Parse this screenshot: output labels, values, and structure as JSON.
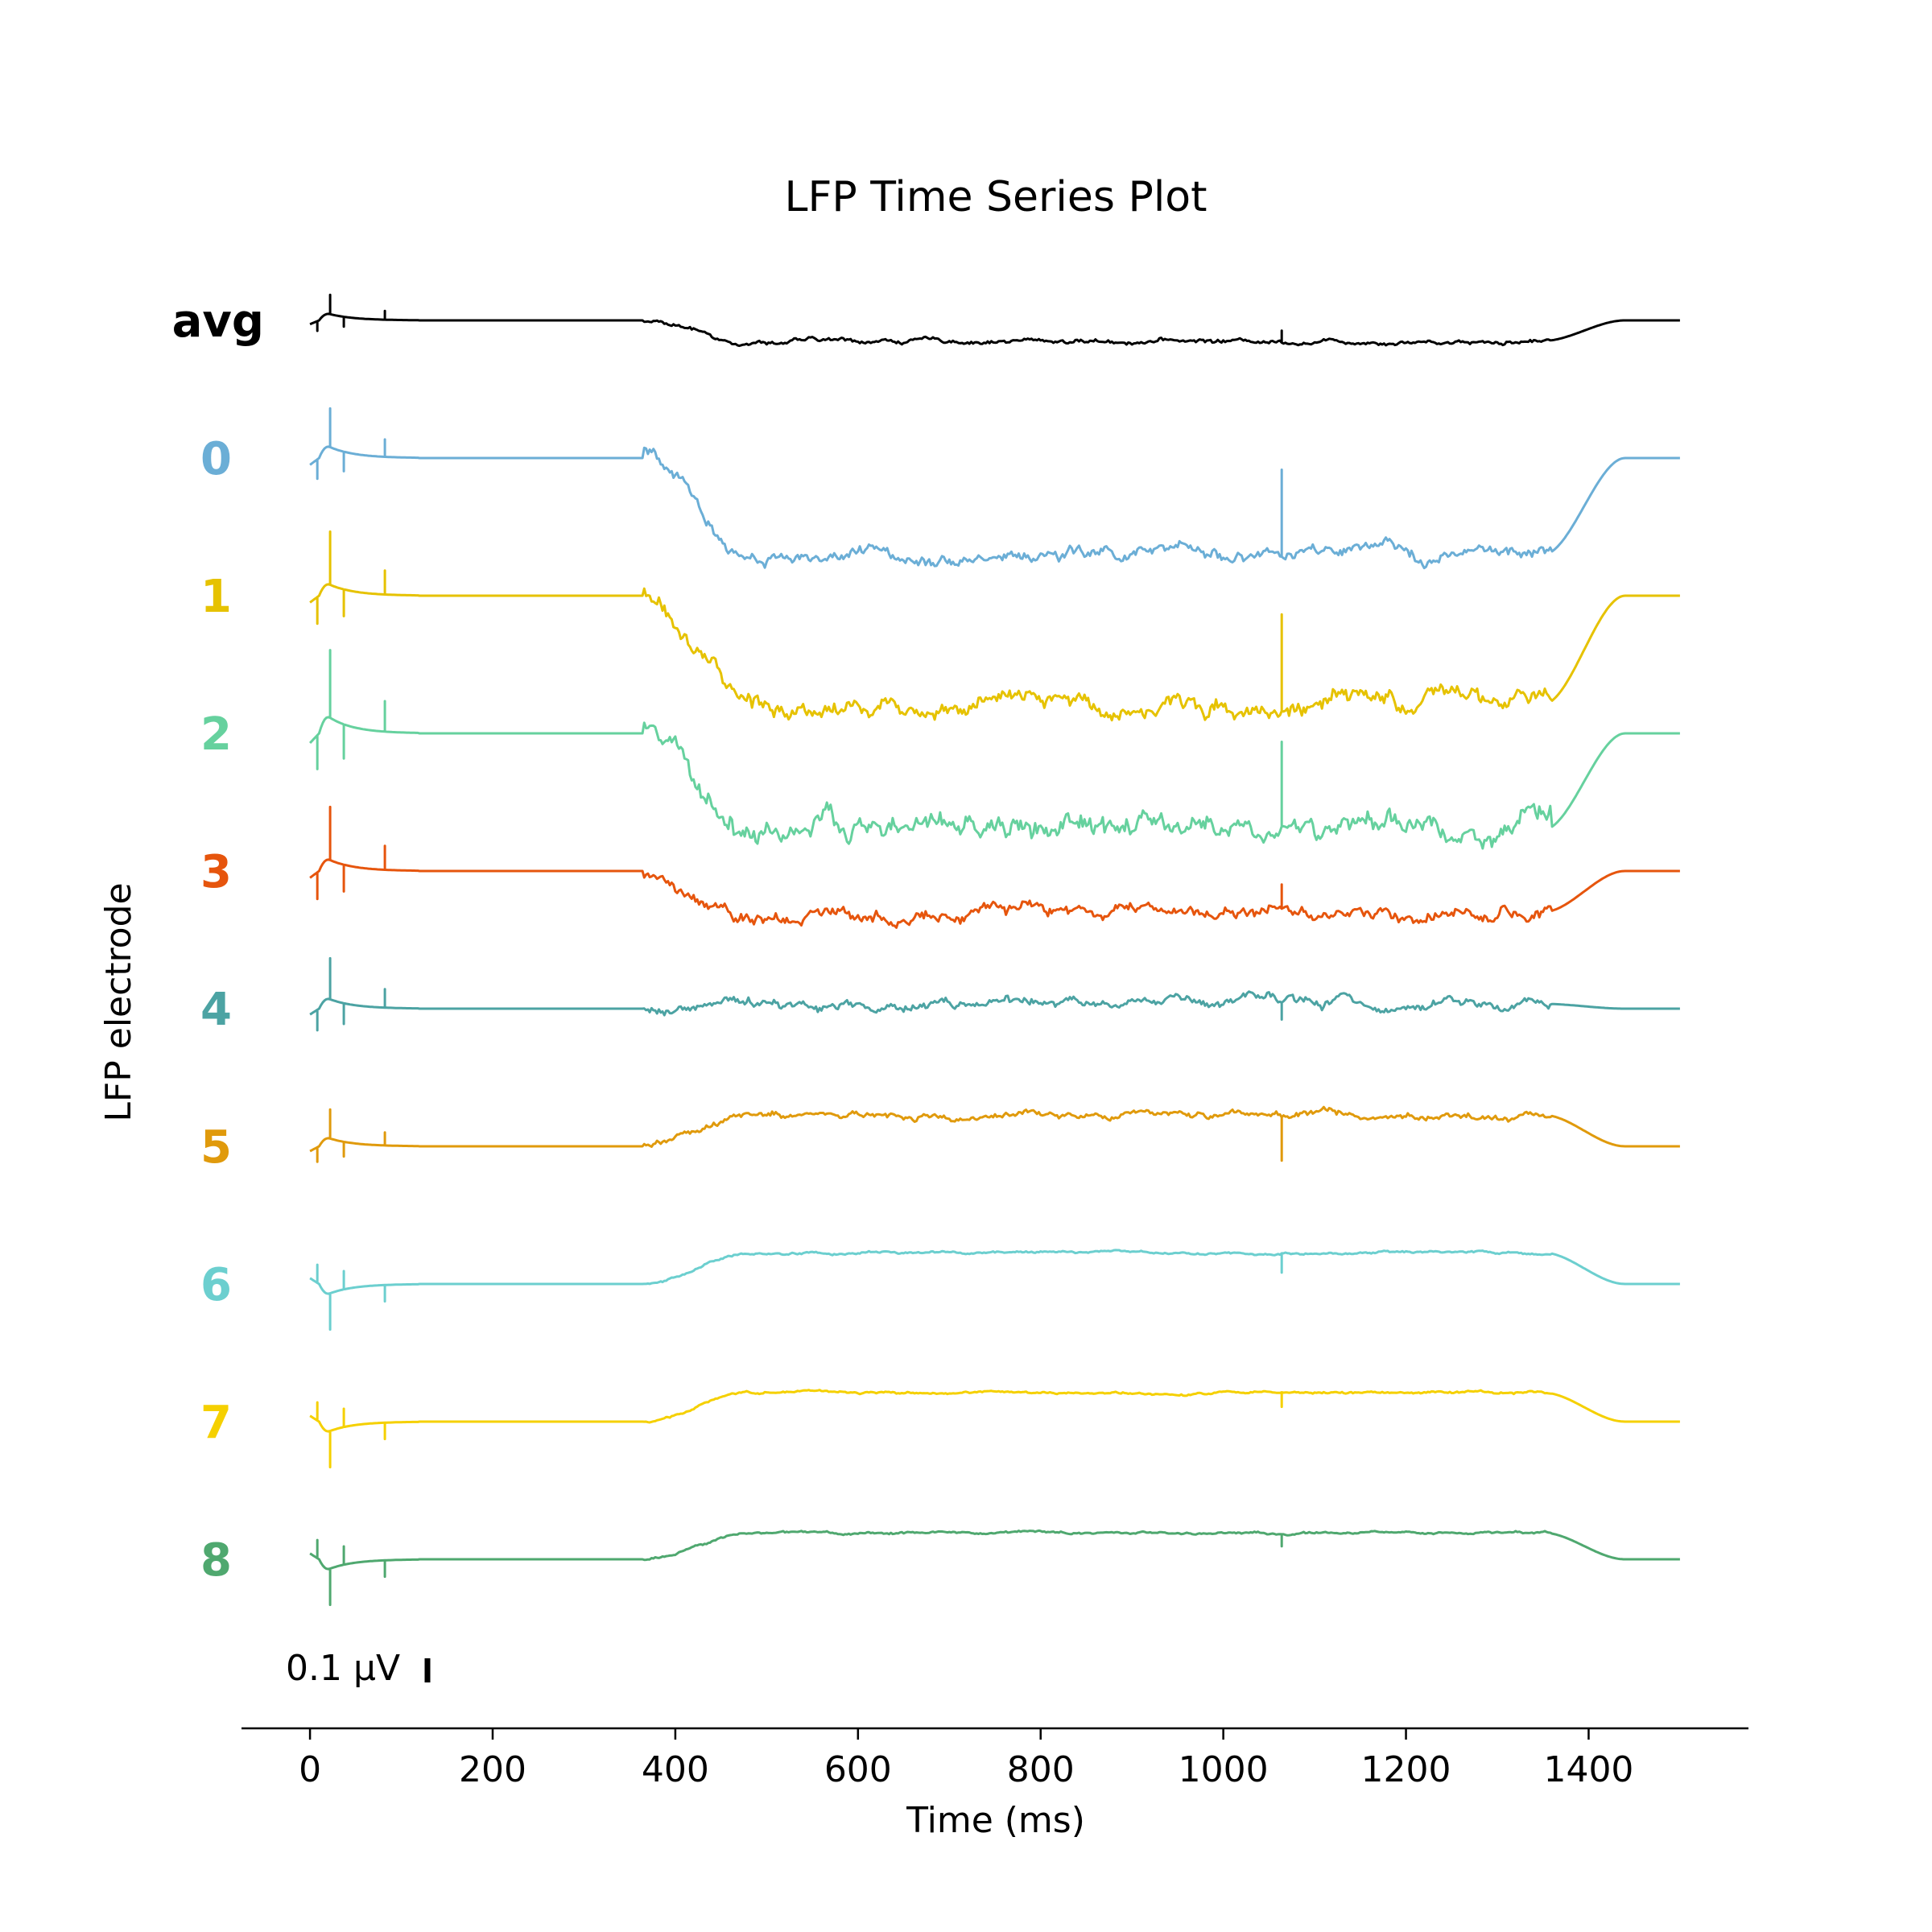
{
  "chart_data": {
    "type": "line",
    "title": "LFP Time Series Plot",
    "xlabel": "Time (ms)",
    "ylabel": "LFP electrode",
    "xlim": [
      -75,
      1575
    ],
    "xticks": [
      0,
      200,
      400,
      600,
      800,
      1000,
      1200,
      1400
    ],
    "x_range": [
      0,
      1500
    ],
    "grid": false,
    "scale_bar_label": "0.1 μV",
    "scale_bar_value_uV": 0.1,
    "series": [
      {
        "name": "avg",
        "color": "#000000",
        "bold_label": true,
        "baseline": 0,
        "early_dir": 1,
        "early_amp": 0.04,
        "spike_amp": 0.08,
        "plateau_level": -0.085,
        "noise": 0.012,
        "end_level": 0.0,
        "late_spike": 0.05
      },
      {
        "name": "0",
        "color": "#6baed6",
        "baseline": 0,
        "early_dir": 1,
        "early_amp": 0.07,
        "spike_amp": 0.16,
        "plateau_level": -0.4,
        "noise": 0.035,
        "end_level": 0.0,
        "late_spike": 0.36
      },
      {
        "name": "1",
        "color": "#e6c200",
        "baseline": 0,
        "early_dir": 1,
        "early_amp": 0.07,
        "spike_amp": 0.22,
        "plateau_level": -0.45,
        "noise": 0.05,
        "end_level": 0.0,
        "late_spike": 0.4
      },
      {
        "name": "2",
        "color": "#66d19e",
        "baseline": 0,
        "early_dir": 1,
        "early_amp": 0.1,
        "spike_amp": 0.28,
        "plateau_level": -0.4,
        "noise": 0.065,
        "end_level": 0.0,
        "late_spike": 0.35
      },
      {
        "name": "3",
        "color": "#e6550d",
        "baseline": 0,
        "early_dir": 1,
        "early_amp": 0.07,
        "spike_amp": 0.22,
        "plateau_level": -0.17,
        "noise": 0.035,
        "end_level": 0.0,
        "late_spike": 0.1
      },
      {
        "name": "4",
        "color": "#4ca3a3",
        "baseline": 0,
        "early_dir": 1,
        "early_amp": 0.06,
        "spike_amp": 0.17,
        "plateau_level": 0.02,
        "noise": 0.025,
        "end_level": 0.0,
        "late_spike": -0.07
      },
      {
        "name": "5",
        "color": "#e09a0c",
        "baseline": 0,
        "early_dir": 1,
        "early_amp": 0.05,
        "spike_amp": 0.12,
        "plateau_level": 0.13,
        "noise": 0.018,
        "end_level": 0.0,
        "late_spike": -0.18
      },
      {
        "name": "6",
        "color": "#6ccfcf",
        "baseline": 0,
        "early_dir": -1,
        "early_amp": 0.06,
        "spike_amp": 0.15,
        "plateau_level": 0.13,
        "noise": 0.006,
        "end_level": 0.0,
        "late_spike": -0.08
      },
      {
        "name": "7",
        "color": "#f5d000",
        "baseline": 0,
        "early_dir": -1,
        "early_amp": 0.06,
        "spike_amp": 0.15,
        "plateau_level": 0.12,
        "noise": 0.006,
        "end_level": 0.0,
        "late_spike": -0.06
      },
      {
        "name": "8",
        "color": "#4fa86f",
        "baseline": 0,
        "early_dir": -1,
        "early_amp": 0.06,
        "spike_amp": 0.15,
        "plateau_level": 0.11,
        "noise": 0.006,
        "end_level": 0.0,
        "late_spike": -0.05
      }
    ]
  }
}
